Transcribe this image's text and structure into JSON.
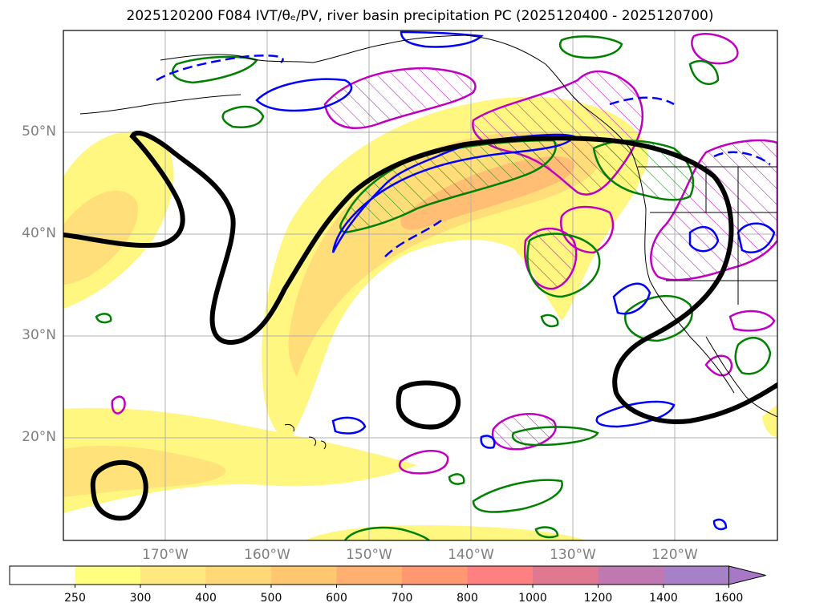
{
  "title": "2025120200 F084 IVT/θₑ/PV, river basin precipitation PC (2025120400 - 2025120700)",
  "map": {
    "lat_ticks": [
      {
        "label": "50°N",
        "lat": 50
      },
      {
        "label": "40°N",
        "lat": 40
      },
      {
        "label": "30°N",
        "lat": 30
      },
      {
        "label": "20°N",
        "lat": 20
      }
    ],
    "lon_ticks": [
      {
        "label": "170°W",
        "lon": -170
      },
      {
        "label": "160°W",
        "lon": -160
      },
      {
        "label": "150°W",
        "lon": -150
      },
      {
        "label": "140°W",
        "lon": -140
      },
      {
        "label": "130°W",
        "lon": -130
      },
      {
        "label": "120°W",
        "lon": -120
      }
    ],
    "extent": {
      "lon_min": -180,
      "lon_max": -110,
      "lat_min": 10,
      "lat_max": 60
    },
    "colors": {
      "ivt_fill": "#fff780",
      "ivt_mid": "#ffd070",
      "ivt_core": "#ffb070",
      "pv_contour": "#000000",
      "theta_e_green": "#008000",
      "blue_contour": "#0000ff",
      "magenta_contour": "#c000c0",
      "grid": "#b0b0b0"
    }
  },
  "colorbar": {
    "ticks": [
      "250",
      "300",
      "400",
      "500",
      "600",
      "700",
      "800",
      "1000",
      "1200",
      "1400",
      "1600"
    ],
    "colors": [
      "#ffffff",
      "#ffff80",
      "#ffe880",
      "#ffd878",
      "#ffc870",
      "#ffb070",
      "#ff9870",
      "#ff8080",
      "#e07890",
      "#c078b0",
      "#a880c8",
      "#a878c8"
    ]
  }
}
